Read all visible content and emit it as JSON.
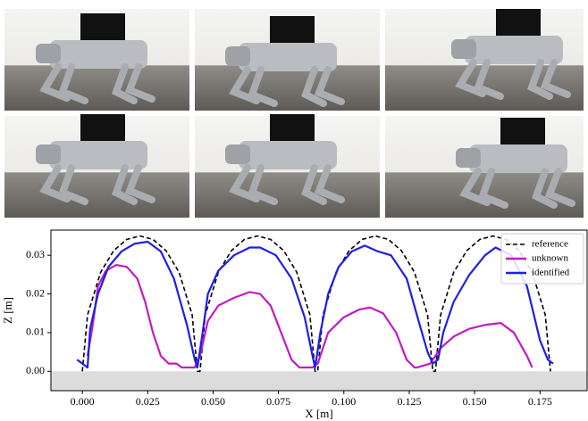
{
  "chart_data": {
    "type": "line",
    "xlabel": "X [m]",
    "ylabel": "Z [m]",
    "xlim": [
      -0.012,
      0.193
    ],
    "ylim": [
      -0.005,
      0.0365
    ],
    "xticks": [
      {
        "value": 0,
        "label": "0.000"
      },
      0.025,
      {
        "value": 0.05,
        "label": "0.050"
      },
      0.075,
      {
        "value": 0.1,
        "label": "0.100"
      },
      0.125,
      {
        "value": 0.15,
        "label": "0.150"
      },
      0.175
    ],
    "yticks": [
      {
        "value": 0,
        "label": "0.00"
      },
      0.01,
      0.02,
      0.03
    ],
    "legend": "upper right",
    "series": [
      {
        "name": "reference",
        "color": "#000000",
        "dashed": true,
        "x": [
          0,
          0.002,
          0.007,
          0.012,
          0.017,
          0.022,
          0.027,
          0.032,
          0.037,
          0.042,
          0.044,
          0.045,
          0.047,
          0.052,
          0.057,
          0.062,
          0.067,
          0.072,
          0.077,
          0.082,
          0.087,
          0.089,
          0.09,
          0.092,
          0.097,
          0.102,
          0.107,
          0.112,
          0.117,
          0.122,
          0.127,
          0.132,
          0.134,
          0.135,
          0.137,
          0.142,
          0.147,
          0.152,
          0.157,
          0.162,
          0.167,
          0.172,
          0.177,
          0.179
        ],
        "values": [
          0,
          0.0146,
          0.0256,
          0.0312,
          0.0341,
          0.035,
          0.0341,
          0.0312,
          0.0256,
          0.0146,
          0,
          0,
          0.0146,
          0.0256,
          0.0312,
          0.0341,
          0.035,
          0.0341,
          0.0312,
          0.0256,
          0.0146,
          0,
          0,
          0.0146,
          0.0256,
          0.0312,
          0.0341,
          0.035,
          0.0341,
          0.0312,
          0.0256,
          0.0146,
          0,
          0,
          0.0146,
          0.0256,
          0.0312,
          0.0341,
          0.035,
          0.0341,
          0.0312,
          0.0256,
          0.0146,
          0
        ]
      },
      {
        "name": "unknown",
        "color": "#c21bc2",
        "dashed": false,
        "x": [
          0.002,
          0.004,
          0.006,
          0.009,
          0.013,
          0.017,
          0.021,
          0.024,
          0.027,
          0.03,
          0.033,
          0.036,
          0.038,
          0.04,
          0.043,
          0.045,
          0.048,
          0.052,
          0.058,
          0.064,
          0.068,
          0.072,
          0.076,
          0.08,
          0.083,
          0.085,
          0.088,
          0.09,
          0.094,
          0.1,
          0.106,
          0.11,
          0.115,
          0.12,
          0.124,
          0.127,
          0.128,
          0.133,
          0.137,
          0.142,
          0.148,
          0.154,
          0.16,
          0.165,
          0.17,
          0.172
        ],
        "values": [
          0.004,
          0.012,
          0.022,
          0.026,
          0.0275,
          0.027,
          0.024,
          0.018,
          0.01,
          0.004,
          0.002,
          0.002,
          0.001,
          0.001,
          0.001,
          0.004,
          0.013,
          0.017,
          0.019,
          0.0205,
          0.02,
          0.017,
          0.01,
          0.003,
          0.001,
          0.001,
          0.001,
          0.002,
          0.01,
          0.014,
          0.016,
          0.0165,
          0.015,
          0.01,
          0.003,
          0.001,
          0.001,
          0.002,
          0.006,
          0.009,
          0.011,
          0.012,
          0.0125,
          0.01,
          0.004,
          0.001
        ]
      },
      {
        "name": "identified",
        "color": "#1f1fe6",
        "dashed": false,
        "x": [
          -0.002,
          0.002,
          0.003,
          0.006,
          0.01,
          0.015,
          0.02,
          0.025,
          0.03,
          0.035,
          0.04,
          0.043,
          0.044,
          0.046,
          0.048,
          0.052,
          0.058,
          0.064,
          0.068,
          0.074,
          0.08,
          0.085,
          0.088,
          0.089,
          0.091,
          0.094,
          0.098,
          0.103,
          0.108,
          0.113,
          0.118,
          0.124,
          0.129,
          0.132,
          0.134,
          0.136,
          0.138,
          0.142,
          0.148,
          0.154,
          0.158,
          0.164,
          0.17,
          0.175,
          0.178,
          0.18
        ],
        "values": [
          0.003,
          0.001,
          0.011,
          0.02,
          0.027,
          0.031,
          0.033,
          0.0335,
          0.031,
          0.024,
          0.012,
          0.003,
          0.001,
          0.01,
          0.02,
          0.026,
          0.03,
          0.032,
          0.032,
          0.03,
          0.024,
          0.014,
          0.004,
          0.001,
          0.01,
          0.02,
          0.027,
          0.031,
          0.0325,
          0.031,
          0.03,
          0.024,
          0.012,
          0.005,
          0.002,
          0.003,
          0.01,
          0.018,
          0.025,
          0.03,
          0.032,
          0.03,
          0.022,
          0.008,
          0.003,
          0.002
        ]
      }
    ]
  }
}
